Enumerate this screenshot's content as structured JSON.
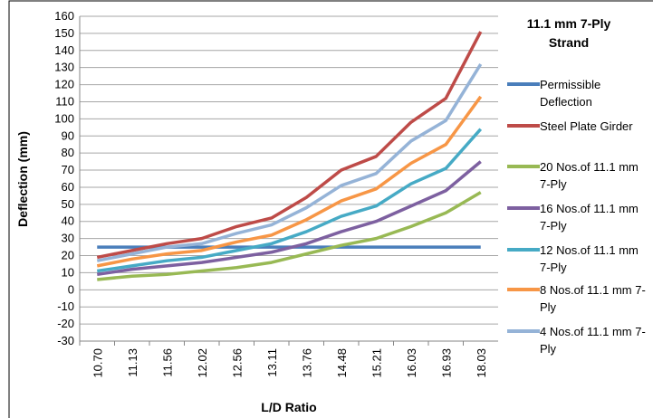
{
  "chart_data": {
    "type": "line",
    "title": "11.1 mm  7-Ply Strand",
    "x_label": "L/D Ratio",
    "y_label": "Deflection (mm)",
    "categories": [
      "10.70",
      "11.13",
      "11.56",
      "12.02",
      "12.56",
      "13.11",
      "13.76",
      "14.48",
      "15.21",
      "16.03",
      "16.93",
      "18.03"
    ],
    "series": [
      {
        "name": "Permissible Deflection",
        "color": "#4a7ebb",
        "values": [
          25,
          25,
          25,
          25,
          25,
          25,
          25,
          25,
          25,
          25,
          25,
          25
        ]
      },
      {
        "name": "Steel Plate Girder",
        "color": "#be4b48",
        "values": [
          19,
          23,
          27,
          30,
          37,
          42,
          54,
          70,
          78,
          98,
          112,
          151
        ]
      },
      {
        "name": "20 Nos.of 11.1 mm 7-Ply",
        "color": "#98b954",
        "values": [
          6,
          8,
          9,
          11,
          13,
          16,
          21,
          26,
          30,
          37,
          45,
          57
        ]
      },
      {
        "name": "16 Nos.of 11.1 mm 7-Ply",
        "color": "#7d60a0",
        "values": [
          9,
          12,
          14,
          16,
          19,
          22,
          27,
          34,
          40,
          49,
          58,
          75
        ]
      },
      {
        "name": "12 Nos.of 11.1 mm 7-Ply",
        "color": "#46aac5",
        "values": [
          11,
          14,
          17,
          19,
          23,
          27,
          34,
          43,
          49,
          62,
          71,
          94
        ]
      },
      {
        "name": "8 Nos.of 11.1 mm 7-Ply",
        "color": "#f79646",
        "values": [
          14,
          18,
          21,
          23,
          28,
          32,
          41,
          52,
          59,
          74,
          85,
          113
        ]
      },
      {
        "name": "4 Nos.of 11.1 mm 7-Ply",
        "color": "#95b3d7",
        "values": [
          17,
          21,
          25,
          27,
          33,
          38,
          48,
          61,
          68,
          87,
          99,
          132
        ]
      }
    ],
    "ylim": [
      -30,
      160
    ],
    "yticks": [
      -30,
      -20,
      -10,
      0,
      10,
      20,
      30,
      40,
      50,
      60,
      70,
      80,
      90,
      100,
      110,
      120,
      130,
      140,
      150,
      160
    ],
    "grid": true
  }
}
